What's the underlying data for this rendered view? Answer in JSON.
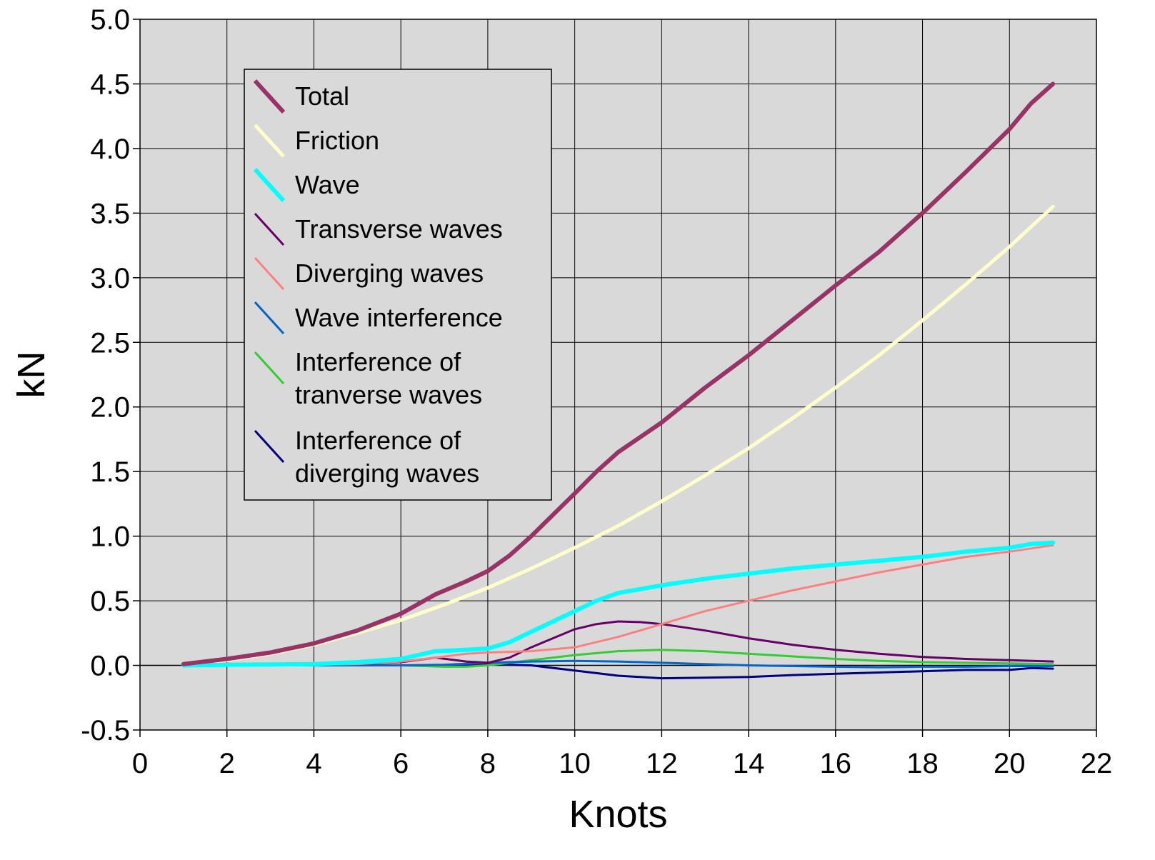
{
  "chart_data": {
    "type": "line",
    "title": "",
    "xlabel": "Knots",
    "ylabel": "kN",
    "xlim": [
      0,
      22
    ],
    "ylim": [
      -0.5,
      5.0
    ],
    "x_ticks": [
      "0",
      "2",
      "4",
      "6",
      "8",
      "10",
      "12",
      "14",
      "16",
      "18",
      "20",
      "22"
    ],
    "y_ticks": [
      "-0.5",
      "0.0",
      "0.5",
      "1.0",
      "1.5",
      "2.0",
      "2.5",
      "3.0",
      "3.5",
      "4.0",
      "4.5",
      "5.0"
    ],
    "grid": true,
    "legend_position": "top-left",
    "plot_background": "#d9d9d9",
    "series": [
      {
        "name": "Total",
        "color": "#993366",
        "width": 6,
        "x": [
          1,
          2,
          3,
          4,
          5,
          6,
          6.8,
          7.5,
          8,
          8.5,
          9,
          10,
          10.5,
          11,
          12,
          13,
          14,
          15,
          16,
          17,
          18,
          19,
          20,
          20.5,
          21
        ],
        "y": [
          0.01,
          0.05,
          0.1,
          0.17,
          0.27,
          0.4,
          0.55,
          0.65,
          0.73,
          0.85,
          1.0,
          1.33,
          1.5,
          1.65,
          1.88,
          2.15,
          2.4,
          2.67,
          2.94,
          3.2,
          3.5,
          3.82,
          4.15,
          4.35,
          4.5
        ]
      },
      {
        "name": "Friction",
        "color": "#ffffcc",
        "width": 5,
        "x": [
          1,
          2,
          3,
          4,
          5,
          6,
          7,
          8,
          9,
          10,
          11,
          12,
          13,
          14,
          15,
          16,
          17,
          18,
          19,
          20,
          21
        ],
        "y": [
          0.01,
          0.04,
          0.09,
          0.16,
          0.25,
          0.35,
          0.47,
          0.6,
          0.75,
          0.91,
          1.08,
          1.27,
          1.47,
          1.68,
          1.91,
          2.15,
          2.4,
          2.67,
          2.95,
          3.24,
          3.55
        ]
      },
      {
        "name": "Wave",
        "color": "#00ffff",
        "width": 6,
        "x": [
          1,
          2,
          3,
          4,
          5,
          6,
          6.8,
          7.5,
          8,
          8.5,
          9,
          10,
          10.5,
          11,
          12,
          13,
          14,
          15,
          16,
          17,
          18,
          19,
          20,
          20.5,
          21
        ],
        "y": [
          0.0,
          0.005,
          0.007,
          0.01,
          0.025,
          0.05,
          0.11,
          0.12,
          0.13,
          0.18,
          0.26,
          0.42,
          0.5,
          0.56,
          0.62,
          0.67,
          0.71,
          0.75,
          0.78,
          0.81,
          0.84,
          0.88,
          0.91,
          0.94,
          0.95
        ]
      },
      {
        "name": "Transverse waves",
        "color": "#660066",
        "width": 3,
        "x": [
          1,
          2,
          3,
          4,
          5,
          6,
          6.8,
          7.5,
          8,
          8.5,
          9,
          10,
          10.5,
          11,
          11.5,
          12,
          13,
          14,
          15,
          16,
          17,
          18,
          19,
          20,
          21
        ],
        "y": [
          0.0,
          0.0,
          0.0,
          0.005,
          0.01,
          0.025,
          0.06,
          0.03,
          0.02,
          0.06,
          0.14,
          0.28,
          0.32,
          0.34,
          0.335,
          0.32,
          0.27,
          0.21,
          0.16,
          0.12,
          0.09,
          0.065,
          0.05,
          0.04,
          0.03
        ]
      },
      {
        "name": "Diverging waves",
        "color": "#ff8080",
        "width": 3,
        "x": [
          1,
          2,
          3,
          4,
          5,
          6,
          6.8,
          7.5,
          8,
          9,
          10,
          11,
          12,
          13,
          14,
          15,
          16,
          17,
          18,
          19,
          20,
          21
        ],
        "y": [
          0.0,
          0.0,
          0.0,
          0.005,
          0.01,
          0.03,
          0.06,
          0.09,
          0.1,
          0.11,
          0.14,
          0.22,
          0.32,
          0.42,
          0.5,
          0.58,
          0.65,
          0.72,
          0.78,
          0.84,
          0.88,
          0.93
        ]
      },
      {
        "name": "Wave interference",
        "color": "#0066cc",
        "width": 3,
        "x": [
          1,
          2,
          3,
          4,
          5,
          6,
          7,
          8,
          9,
          10,
          11,
          12,
          13,
          14,
          15,
          16,
          17,
          18,
          19,
          20,
          21
        ],
        "y": [
          0.0,
          0.0,
          0.0,
          0.0,
          0.0,
          0.0,
          0.005,
          0.02,
          0.03,
          0.035,
          0.03,
          0.02,
          0.01,
          0.0,
          -0.005,
          -0.01,
          -0.015,
          -0.01,
          -0.01,
          -0.005,
          -0.005
        ]
      },
      {
        "name": "Interference of\ntranverse waves",
        "color": "#33cc33",
        "width": 3,
        "x": [
          1,
          2,
          3,
          4,
          5,
          6,
          7,
          7.5,
          8,
          9,
          10,
          11,
          12,
          13,
          14,
          15,
          16,
          17,
          18,
          19,
          20,
          21
        ],
        "y": [
          0.0,
          0.0,
          0.0,
          0.0,
          0.0,
          0.0,
          -0.01,
          -0.01,
          0.0,
          0.04,
          0.08,
          0.11,
          0.12,
          0.11,
          0.09,
          0.07,
          0.05,
          0.035,
          0.025,
          0.02,
          0.015,
          0.01
        ]
      },
      {
        "name": "Interference of\ndiverging waves",
        "color": "#000080",
        "width": 3,
        "x": [
          1,
          2,
          3,
          4,
          5,
          6,
          7,
          8,
          9,
          10,
          11,
          12,
          13,
          14,
          15,
          16,
          17,
          18,
          19,
          20,
          20.5,
          21
        ],
        "y": [
          0.0,
          0.0,
          0.0,
          0.0,
          0.0,
          0.0,
          0.0,
          0.01,
          0.0,
          -0.04,
          -0.08,
          -0.1,
          -0.095,
          -0.09,
          -0.075,
          -0.065,
          -0.055,
          -0.045,
          -0.035,
          -0.035,
          -0.02,
          -0.025
        ]
      }
    ]
  }
}
